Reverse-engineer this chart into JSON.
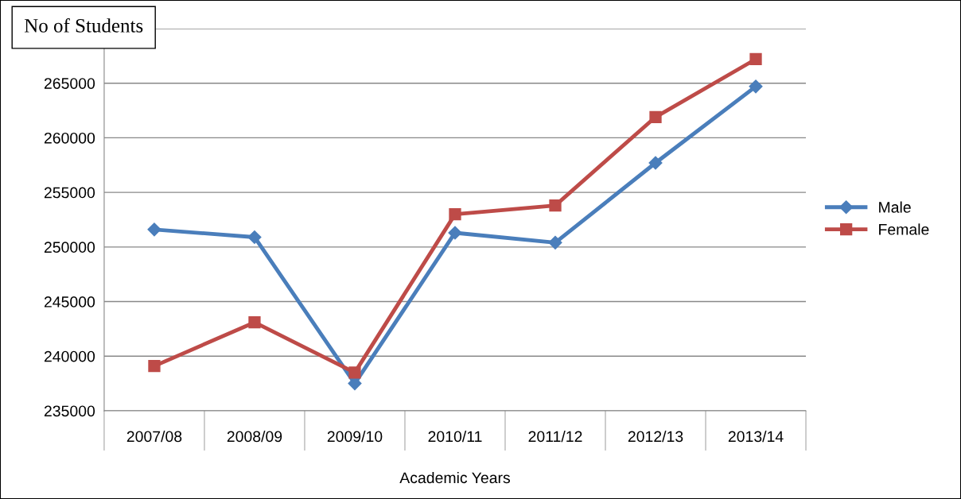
{
  "chart_data": {
    "type": "line",
    "title": "No of Students",
    "xlabel": "Academic Years",
    "categories": [
      "2007/08",
      "2008/09",
      "2009/10",
      "2010/11",
      "2011/12",
      "2012/13",
      "2013/14"
    ],
    "series": [
      {
        "name": "Male",
        "color": "#4a7ebb",
        "marker": "diamond",
        "values": [
          251600,
          250900,
          237500,
          251300,
          250400,
          257700,
          264700
        ]
      },
      {
        "name": "Female",
        "color": "#be4b48",
        "marker": "square",
        "values": [
          239100,
          243100,
          238500,
          253000,
          253800,
          261900,
          267200
        ]
      }
    ],
    "ylim": [
      235000,
      270000
    ],
    "yticks": [
      235000,
      240000,
      245000,
      250000,
      255000,
      260000,
      265000,
      {
        "value": 270000,
        "label": null
      }
    ],
    "grid": "y",
    "legend": "right",
    "line_style": "solid"
  }
}
